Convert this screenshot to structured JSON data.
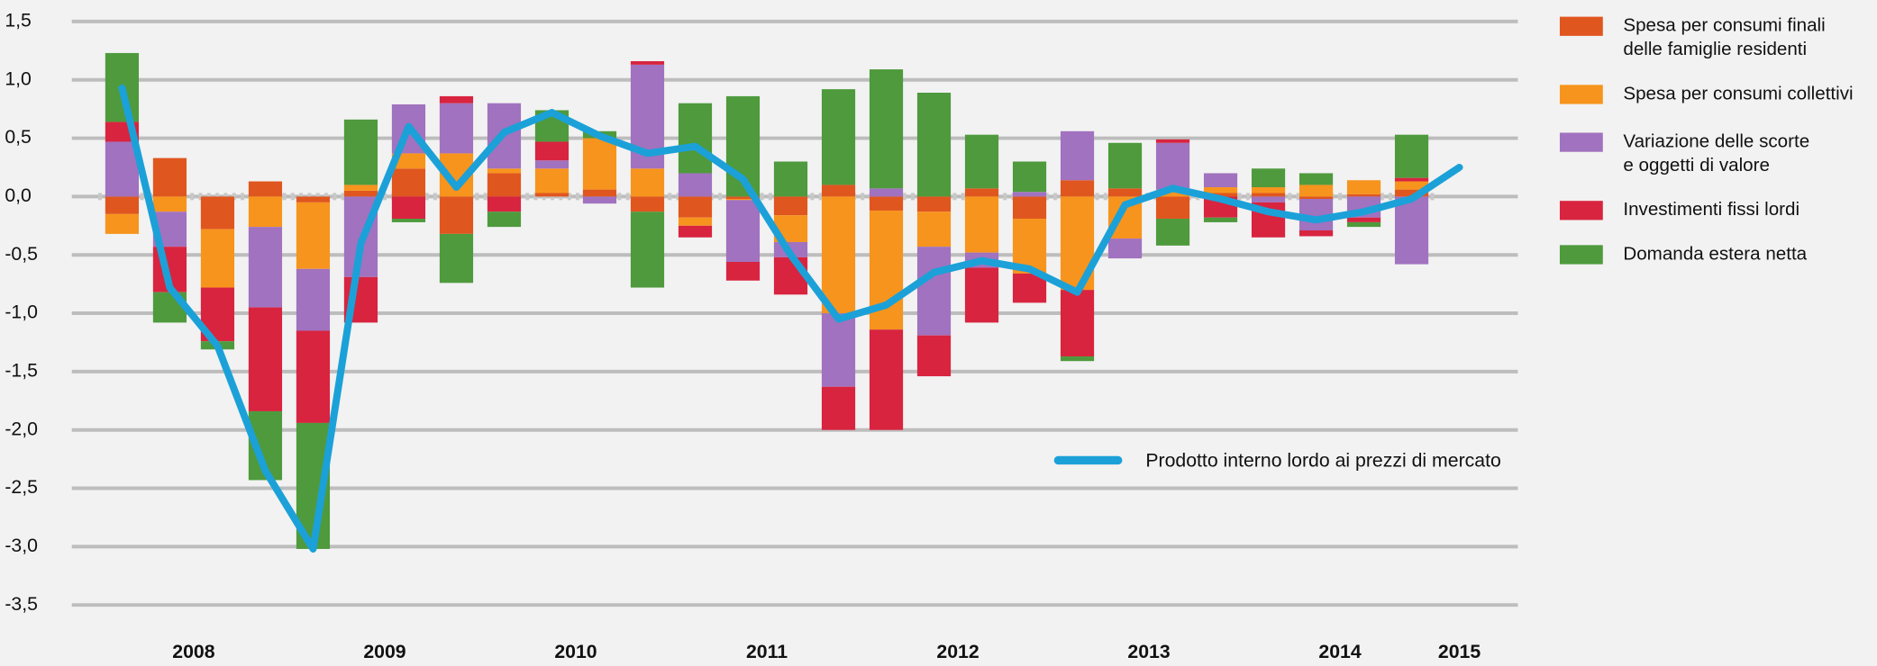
{
  "chart_data": {
    "type": "stacked_bar_line",
    "categories": [
      "2008",
      null,
      null,
      null,
      "2009",
      null,
      null,
      null,
      "2010",
      null,
      null,
      null,
      "2011",
      null,
      null,
      null,
      "2012",
      null,
      null,
      null,
      "2013",
      null,
      null,
      null,
      "2014",
      null,
      null,
      null,
      "2015"
    ],
    "series": [
      {
        "name": "Spesa per consumi finali\ndelle famiglie residenti",
        "color": "#e0561f",
        "values": [
          -0.15,
          0.33,
          -0.28,
          0.13,
          -0.05,
          0.05,
          0.24,
          -0.32,
          0.2,
          0.03,
          0.06,
          -0.13,
          -0.18,
          -0.02,
          -0.16,
          0.1,
          -0.12,
          -0.13,
          0.07,
          -0.19,
          0.14,
          0.07,
          -0.19,
          0.03,
          0.03,
          -0.02,
          0.02,
          0.06,
          null
        ]
      },
      {
        "name": "Spesa per consumi collettivi",
        "color": "#f7941d",
        "values": [
          -0.17,
          -0.13,
          -0.5,
          -0.26,
          -0.57,
          0.05,
          0.13,
          0.37,
          0.04,
          0.21,
          0.44,
          0.24,
          -0.07,
          -0.01,
          -0.23,
          -1.0,
          -1.02,
          -0.3,
          -0.48,
          -0.47,
          -0.8,
          -0.36,
          0.06,
          0.05,
          0.05,
          0.1,
          0.12,
          0.07,
          null
        ]
      },
      {
        "name": "Variazione delle scorte\ne oggetti di valore",
        "color": "#a172bf",
        "values": [
          0.47,
          -0.3,
          0,
          -0.69,
          -0.53,
          -0.69,
          0.42,
          0.43,
          0.56,
          0.07,
          -0.06,
          0.89,
          0.2,
          -0.53,
          -0.13,
          -0.63,
          0.07,
          -0.76,
          -0.13,
          0.04,
          0.42,
          -0.17,
          0.4,
          0.12,
          -0.05,
          -0.27,
          -0.18,
          -0.58,
          null
        ]
      },
      {
        "name": "Investimenti fissi lordi",
        "color": "#d8243f",
        "values": [
          0.17,
          -0.39,
          -0.46,
          -0.89,
          -0.79,
          -0.39,
          -0.19,
          0.06,
          -0.13,
          0.16,
          0,
          0.03,
          -0.1,
          -0.16,
          -0.32,
          -0.37,
          -0.86,
          -0.35,
          -0.47,
          -0.25,
          -0.57,
          0,
          0.03,
          -0.18,
          -0.3,
          -0.05,
          -0.04,
          0.03,
          null
        ]
      },
      {
        "name": "Domanda estera netta",
        "color": "#4e9a3d",
        "values": [
          0.59,
          -0.26,
          -0.07,
          -0.59,
          -1.08,
          0.56,
          -0.03,
          -0.42,
          -0.13,
          0.27,
          0.06,
          -0.65,
          0.6,
          0.86,
          0.3,
          0.82,
          1.02,
          0.89,
          0.46,
          0.26,
          -0.04,
          0.39,
          -0.23,
          -0.04,
          0.16,
          0.1,
          -0.04,
          0.37,
          null
        ]
      }
    ],
    "line": {
      "name": "Prodotto interno lordo ai prezzi di mercato",
      "color": "#1ba1d8",
      "values": [
        0.93,
        -0.78,
        -1.28,
        -2.35,
        -3.02,
        -0.4,
        0.6,
        0.08,
        0.55,
        0.72,
        0.52,
        0.37,
        0.43,
        0.15,
        -0.5,
        -1.05,
        -0.93,
        -0.65,
        -0.55,
        -0.62,
        -0.82,
        -0.07,
        0.07,
        -0.02,
        -0.13,
        -0.2,
        -0.13,
        -0.02,
        0.25
      ]
    },
    "ylim": [
      -3.5,
      1.5
    ],
    "yticks": [
      {
        "value": 1.5,
        "label": "1,5"
      },
      {
        "value": 1.0,
        "label": "1,0"
      },
      {
        "value": 0.5,
        "label": "0,5"
      },
      {
        "value": 0,
        "label": "0,0"
      },
      {
        "value": -0.5,
        "label": "-0,5"
      },
      {
        "value": -1.0,
        "label": "-1,0"
      },
      {
        "value": -1.5,
        "label": "-1,5"
      },
      {
        "value": -2.0,
        "label": "-2,0"
      },
      {
        "value": -2.5,
        "label": "-2,5"
      },
      {
        "value": -3.0,
        "label": "-3,0"
      },
      {
        "value": -3.5,
        "label": "-3,5"
      }
    ],
    "grid": true
  }
}
